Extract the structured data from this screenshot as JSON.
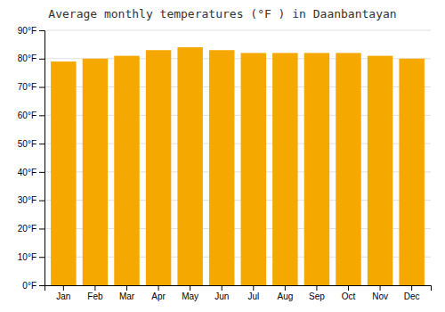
{
  "chart_data": {
    "type": "bar",
    "title": "Average monthly temperatures (°F ) in Daanbantayan",
    "categories": [
      "Jan",
      "Feb",
      "Mar",
      "Apr",
      "May",
      "Jun",
      "Jul",
      "Aug",
      "Sep",
      "Oct",
      "Nov",
      "Dec"
    ],
    "values": [
      79,
      80,
      81,
      83,
      84,
      83,
      82,
      82,
      82,
      82,
      81,
      80
    ],
    "color": "#F5A800",
    "ylim": [
      0,
      90
    ],
    "yticks": [
      {
        "value": 0,
        "label": "0°F"
      },
      {
        "value": 10,
        "label": "10°F"
      },
      {
        "value": 20,
        "label": "20°F"
      },
      {
        "value": 30,
        "label": "30°F"
      },
      {
        "value": 40,
        "label": "40°F"
      },
      {
        "value": 50,
        "label": "50°F"
      },
      {
        "value": 60,
        "label": "60°F"
      },
      {
        "value": 70,
        "label": "70°F"
      },
      {
        "value": 80,
        "label": "80°F"
      },
      {
        "value": 90,
        "label": "90°F"
      }
    ],
    "grid": true
  }
}
